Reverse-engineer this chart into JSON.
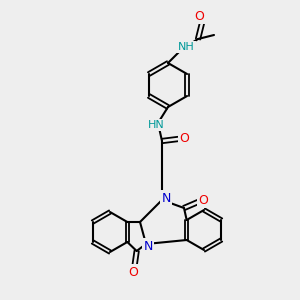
{
  "background_color": "#eeeeee",
  "atom_colors": {
    "N": "#0000cc",
    "O": "#ee0000",
    "H_N": "#009999"
  },
  "figsize": [
    3.0,
    3.0
  ],
  "dpi": 100
}
